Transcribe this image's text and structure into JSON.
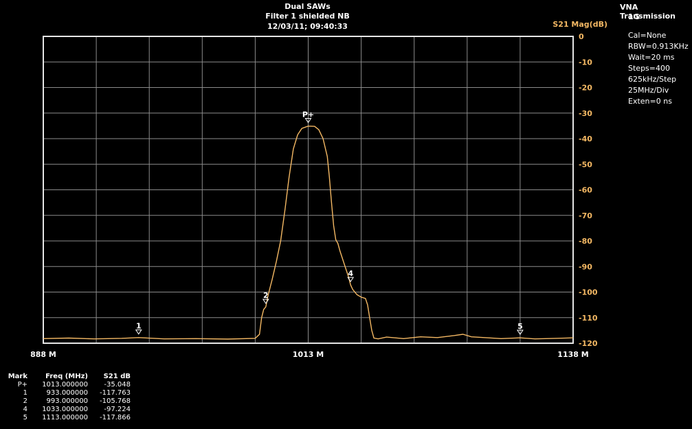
{
  "chart_data": {
    "type": "line",
    "title": "Dual SAWs",
    "subtitle": "Filter 1 shielded  NB",
    "timestamp": "12/03/11; 09:40:33",
    "ylabel": "S21 Mag(dB)",
    "xlim": [
      888,
      1138
    ],
    "ylim": [
      -120,
      0
    ],
    "grid": true,
    "x_tick_labels": [
      {
        "value": 888,
        "label": "888 M"
      },
      {
        "value": 1013,
        "label": "1013 M"
      },
      {
        "value": 1138,
        "label": "1138 M"
      }
    ],
    "y_ticks": [
      0,
      -10,
      -20,
      -30,
      -40,
      -50,
      -60,
      -70,
      -80,
      -90,
      -100,
      -110,
      -120
    ],
    "series": [
      {
        "color": "#f5b964",
        "x": [
          888,
          900,
          912,
          925,
          933,
          945,
          960,
          975,
          988,
          990,
          991,
          992,
          993,
          994,
          996,
          998,
          1000,
          1002,
          1004,
          1006,
          1008,
          1010,
          1013,
          1016,
          1018,
          1020,
          1022,
          1023,
          1024,
          1025,
          1026,
          1027,
          1028,
          1030,
          1032,
          1033,
          1034,
          1036,
          1038,
          1040,
          1041,
          1042,
          1043,
          1044,
          1046,
          1050,
          1058,
          1066,
          1074,
          1082,
          1086,
          1090,
          1096,
          1104,
          1113,
          1120,
          1130,
          1138
        ],
        "y": [
          -118.2,
          -118.0,
          -118.3,
          -118.1,
          -117.8,
          -118.3,
          -118.2,
          -118.4,
          -118.1,
          -116.5,
          -110,
          -106.8,
          -105.8,
          -101.5,
          -95,
          -88,
          -80,
          -68,
          -55,
          -44,
          -38.5,
          -36,
          -35.1,
          -35.2,
          -36.5,
          -40,
          -47,
          -55,
          -65,
          -74,
          -79.5,
          -81,
          -84,
          -89,
          -94,
          -97.2,
          -99,
          -101,
          -102,
          -102.5,
          -105,
          -110,
          -115,
          -118,
          -118.3,
          -117.6,
          -118.2,
          -117.5,
          -117.8,
          -117.0,
          -116.5,
          -117.5,
          -117.8,
          -118.2,
          -117.9,
          -118.3,
          -118.1,
          -117.9
        ]
      }
    ],
    "markers": [
      {
        "label": "P+",
        "x": 1013,
        "y": -35.048
      },
      {
        "label": "1",
        "x": 933,
        "y": -117.763
      },
      {
        "label": "2",
        "x": 993,
        "y": -105.768
      },
      {
        "label": "4",
        "x": 1033,
        "y": -97.224
      },
      {
        "label": "5",
        "x": 1113,
        "y": -117.866
      }
    ]
  },
  "sidebar": {
    "title": "VNA Transmission",
    "subtitle": "1G",
    "items": [
      "Cal=None",
      "RBW=0.913KHz",
      "Wait=20 ms",
      "Steps=400",
      "625kHz/Step",
      "25MHz/Div",
      "Exten=0 ns"
    ]
  },
  "marker_table": {
    "headers": [
      "Mark",
      "Freq (MHz)",
      "S21 dB"
    ],
    "rows": [
      [
        "P+",
        "1013.000000",
        "-35.048"
      ],
      [
        "1",
        "933.000000",
        "-117.763"
      ],
      [
        "2",
        "993.000000",
        "-105.768"
      ],
      [
        "4",
        "1033.000000",
        "-97.224"
      ],
      [
        "5",
        "1113.000000",
        "-117.866"
      ]
    ]
  },
  "colors": {
    "trace": "#f5b964",
    "grid": "#8c8c8c",
    "frame": "#e6e6e6",
    "axis_label": "#f5b964",
    "background": "#000000"
  }
}
